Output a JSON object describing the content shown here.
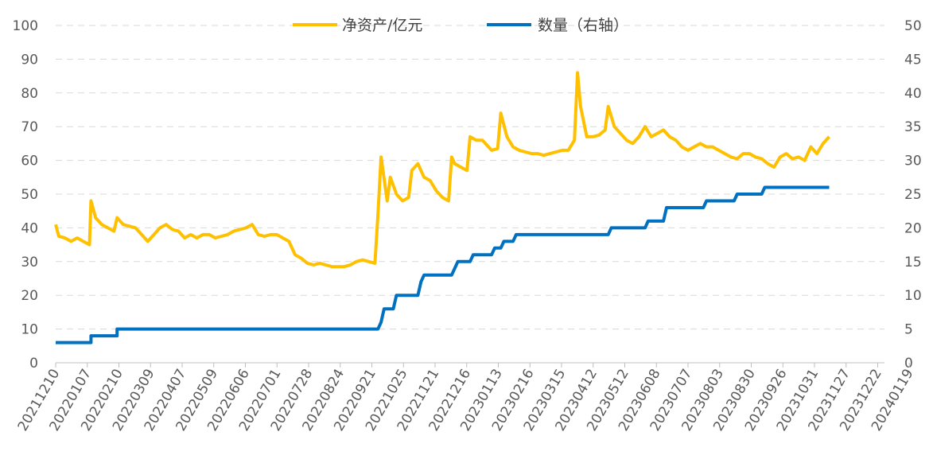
{
  "chart_data": {
    "type": "line",
    "title": "",
    "xlabel": "",
    "ylabel": "",
    "ylim_left": [
      0,
      100
    ],
    "ylim_right": [
      0,
      50
    ],
    "yticks_left": [
      0,
      10,
      20,
      30,
      40,
      50,
      60,
      70,
      80,
      90,
      100
    ],
    "yticks_right": [
      0,
      5,
      10,
      15,
      20,
      25,
      30,
      35,
      40,
      45,
      50
    ],
    "grid": true,
    "legend_position": "top-center",
    "x_tick_labels": [
      "20211210",
      "20220107",
      "20220210",
      "20220309",
      "20220407",
      "20220509",
      "20220606",
      "20220701",
      "20220728",
      "20220824",
      "20220921",
      "20221025",
      "20221121",
      "20221216",
      "20230113",
      "20230216",
      "20230315",
      "20230412",
      "20230512",
      "20230608",
      "20230707",
      "20230803",
      "20230830",
      "20230926",
      "20231031",
      "20231127",
      "20231222",
      "20240119"
    ],
    "x_points": 27,
    "series": [
      {
        "name": "净资产/亿元",
        "axis": "left",
        "color": "#FFC000",
        "points": [
          [
            0,
            41
          ],
          [
            0.1,
            37.5
          ],
          [
            0.3,
            37
          ],
          [
            0.5,
            36
          ],
          [
            0.7,
            37
          ],
          [
            0.9,
            36
          ],
          [
            1.1,
            35
          ],
          [
            1.15,
            48
          ],
          [
            1.3,
            43
          ],
          [
            1.5,
            41
          ],
          [
            1.7,
            40
          ],
          [
            1.9,
            39
          ],
          [
            2.0,
            43
          ],
          [
            2.2,
            41
          ],
          [
            2.4,
            40.5
          ],
          [
            2.6,
            40
          ],
          [
            2.8,
            38
          ],
          [
            3.0,
            36
          ],
          [
            3.2,
            38
          ],
          [
            3.4,
            40
          ],
          [
            3.6,
            41
          ],
          [
            3.8,
            39.5
          ],
          [
            4.0,
            39
          ],
          [
            4.2,
            37
          ],
          [
            4.4,
            38
          ],
          [
            4.6,
            37
          ],
          [
            4.8,
            38
          ],
          [
            5.0,
            38
          ],
          [
            5.2,
            37
          ],
          [
            5.4,
            37.5
          ],
          [
            5.6,
            38
          ],
          [
            5.8,
            39
          ],
          [
            6.0,
            39.5
          ],
          [
            6.2,
            40
          ],
          [
            6.4,
            41
          ],
          [
            6.6,
            38
          ],
          [
            6.8,
            37.5
          ],
          [
            7.0,
            38
          ],
          [
            7.2,
            38
          ],
          [
            7.4,
            37
          ],
          [
            7.6,
            36
          ],
          [
            7.8,
            32
          ],
          [
            8.0,
            31
          ],
          [
            8.2,
            29.5
          ],
          [
            8.4,
            29
          ],
          [
            8.6,
            29.5
          ],
          [
            8.8,
            29
          ],
          [
            9.0,
            28.5
          ],
          [
            9.2,
            28.5
          ],
          [
            9.4,
            28.5
          ],
          [
            9.6,
            29
          ],
          [
            9.8,
            30
          ],
          [
            10.0,
            30.5
          ],
          [
            10.2,
            30
          ],
          [
            10.4,
            29.5
          ],
          [
            10.5,
            44
          ],
          [
            10.6,
            61
          ],
          [
            10.8,
            48
          ],
          [
            10.9,
            55
          ],
          [
            11.1,
            50
          ],
          [
            11.3,
            48
          ],
          [
            11.5,
            49
          ],
          [
            11.6,
            57
          ],
          [
            11.8,
            59
          ],
          [
            12.0,
            55
          ],
          [
            12.2,
            54
          ],
          [
            12.4,
            51
          ],
          [
            12.6,
            49
          ],
          [
            12.8,
            48
          ],
          [
            12.9,
            61
          ],
          [
            13.0,
            59
          ],
          [
            13.2,
            58
          ],
          [
            13.4,
            57
          ],
          [
            13.5,
            67
          ],
          [
            13.7,
            66
          ],
          [
            13.9,
            66
          ],
          [
            14.0,
            65
          ],
          [
            14.2,
            63
          ],
          [
            14.4,
            63.5
          ],
          [
            14.5,
            74
          ],
          [
            14.7,
            67
          ],
          [
            14.9,
            64
          ],
          [
            15.1,
            63
          ],
          [
            15.3,
            62.5
          ],
          [
            15.5,
            62
          ],
          [
            15.7,
            62
          ],
          [
            15.9,
            61.5
          ],
          [
            16.1,
            62
          ],
          [
            16.3,
            62.5
          ],
          [
            16.5,
            63
          ],
          [
            16.7,
            63
          ],
          [
            16.9,
            66
          ],
          [
            17.0,
            86
          ],
          [
            17.1,
            76
          ],
          [
            17.3,
            67
          ],
          [
            17.5,
            67
          ],
          [
            17.7,
            67.5
          ],
          [
            17.9,
            69
          ],
          [
            18.0,
            76
          ],
          [
            18.2,
            70
          ],
          [
            18.4,
            68
          ],
          [
            18.6,
            66
          ],
          [
            18.8,
            65
          ],
          [
            19.0,
            67
          ],
          [
            19.2,
            70
          ],
          [
            19.4,
            67
          ],
          [
            19.6,
            68
          ],
          [
            19.8,
            69
          ],
          [
            20.0,
            67
          ],
          [
            20.2,
            66
          ],
          [
            20.4,
            64
          ],
          [
            20.6,
            63
          ],
          [
            20.8,
            64
          ],
          [
            21.0,
            65
          ],
          [
            21.2,
            64
          ],
          [
            21.4,
            64
          ],
          [
            21.6,
            63
          ],
          [
            21.8,
            62
          ],
          [
            22.0,
            61
          ],
          [
            22.2,
            60.5
          ],
          [
            22.4,
            62
          ],
          [
            22.6,
            62
          ],
          [
            22.8,
            61
          ],
          [
            23.0,
            60.5
          ],
          [
            23.2,
            59
          ],
          [
            23.4,
            58
          ],
          [
            23.6,
            61
          ],
          [
            23.8,
            62
          ],
          [
            24.0,
            60.5
          ],
          [
            24.2,
            61
          ],
          [
            24.4,
            60
          ],
          [
            24.6,
            64
          ],
          [
            24.8,
            62
          ],
          [
            25.0,
            65
          ],
          [
            25.2,
            67
          ]
        ]
      },
      {
        "name": "数量（右轴）",
        "axis": "right",
        "color": "#0070C0",
        "points": [
          [
            0,
            3
          ],
          [
            1.15,
            3
          ],
          [
            1.15,
            4
          ],
          [
            2.0,
            4
          ],
          [
            2.0,
            5
          ],
          [
            10.5,
            5
          ],
          [
            10.6,
            6
          ],
          [
            10.7,
            8
          ],
          [
            11.0,
            8
          ],
          [
            11.1,
            10
          ],
          [
            11.8,
            10
          ],
          [
            11.9,
            12
          ],
          [
            12.0,
            13
          ],
          [
            12.9,
            13
          ],
          [
            13.0,
            14
          ],
          [
            13.1,
            15
          ],
          [
            13.5,
            15
          ],
          [
            13.6,
            16
          ],
          [
            14.2,
            16
          ],
          [
            14.3,
            17
          ],
          [
            14.5,
            17
          ],
          [
            14.6,
            18
          ],
          [
            14.9,
            18
          ],
          [
            15.0,
            19
          ],
          [
            16.9,
            19
          ],
          [
            18.0,
            19
          ],
          [
            18.1,
            20
          ],
          [
            19.2,
            20
          ],
          [
            19.3,
            21
          ],
          [
            19.8,
            21
          ],
          [
            19.9,
            23
          ],
          [
            21.1,
            23
          ],
          [
            21.2,
            24
          ],
          [
            22.1,
            24
          ],
          [
            22.2,
            25
          ],
          [
            23.0,
            25
          ],
          [
            23.1,
            26
          ],
          [
            25.2,
            26
          ]
        ]
      }
    ]
  }
}
